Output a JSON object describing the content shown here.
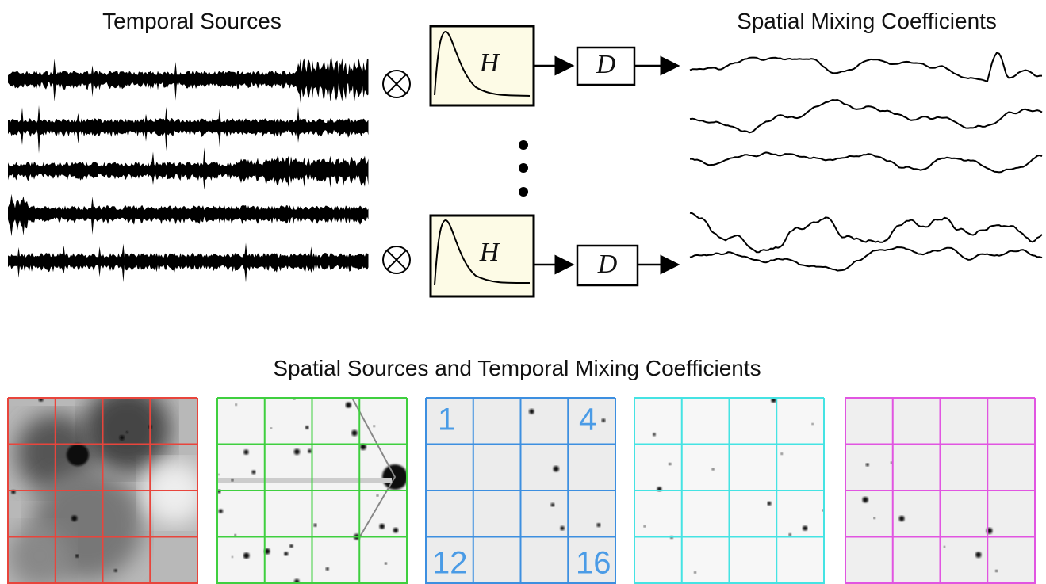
{
  "top": {
    "temporal_title": "Temporal Sources",
    "spatial_mixing_title": "Spatial Mixing Coefficients",
    "filters": [
      {
        "h": "H",
        "d": "D"
      },
      {
        "h": "H",
        "d": "D"
      }
    ]
  },
  "bottom": {
    "title": "Spatial Sources and Temporal Mixing Coefficients",
    "panel_labels": [
      "1",
      "4",
      "12",
      "16"
    ]
  }
}
